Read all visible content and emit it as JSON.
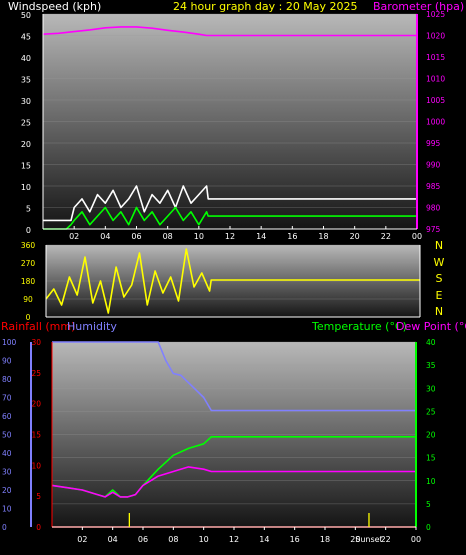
{
  "header": {
    "windspeed_label": "Windspeed (kph)",
    "title": "24 hour graph day : 20 May 2025",
    "barometer_label": "Barometer (hpa)"
  },
  "colors": {
    "white": "#ffffff",
    "yellow": "#ffff00",
    "magenta": "#ff00ff",
    "blue": "#8080ff",
    "green": "#00ff00",
    "red": "#ff0000",
    "bg_top": "#b8b8b8",
    "bg_bottom": "#151515"
  },
  "wind_dir": {
    "compass": [
      "N",
      "W",
      "S",
      "E",
      "N"
    ]
  },
  "lower": {
    "rainfall_label": "Rainfall (mm)",
    "humidity_label": "Humidity",
    "temperature_label": "Temperature (°C)",
    "dewpoint_label": "Dew Point (°C)",
    "sunset_label": "Sunset"
  },
  "chart_data": [
    {
      "type": "line",
      "title": "24 hour graph day : 20 May 2025",
      "x_ticks": [
        "02",
        "04",
        "06",
        "08",
        "10",
        "12",
        "14",
        "16",
        "18",
        "20",
        "22",
        "00"
      ],
      "xlim": [
        0,
        24
      ],
      "y_left": {
        "label": "Windspeed (kph)",
        "ylim": [
          0,
          50
        ],
        "ticks": [
          0,
          5,
          10,
          15,
          20,
          25,
          30,
          35,
          40,
          45,
          50
        ]
      },
      "y_right": {
        "label": "Barometer (hpa)",
        "ylim": [
          975,
          1025
        ],
        "ticks": [
          975,
          980,
          985,
          990,
          995,
          1000,
          1005,
          1010,
          1015,
          1020,
          1025
        ]
      },
      "series": [
        {
          "name": "Barometer (hpa)",
          "axis": "right",
          "color": "#ff00ff",
          "x": [
            0,
            1,
            2,
            3,
            4,
            5,
            6,
            7,
            8,
            9,
            10,
            10.5,
            12,
            16,
            20,
            24
          ],
          "y": [
            1020.3,
            1020.5,
            1020.9,
            1021.3,
            1021.8,
            1022.0,
            1022.0,
            1021.7,
            1021.2,
            1020.8,
            1020.3,
            1020.0,
            1020.0,
            1020.0,
            1020.0,
            1020.0
          ]
        },
        {
          "name": "Gust",
          "axis": "left",
          "color": "#ffffff",
          "x": [
            0,
            1.8,
            2,
            2.5,
            3,
            3.5,
            4,
            4.5,
            5,
            5.5,
            6,
            6.5,
            7,
            7.5,
            8,
            8.5,
            9,
            9.5,
            10,
            10.5,
            10.6,
            24
          ],
          "y": [
            2,
            2,
            5,
            7,
            4,
            8,
            6,
            9,
            5,
            7,
            10,
            4,
            8,
            6,
            9,
            5,
            10,
            6,
            8,
            10,
            7,
            7
          ]
        },
        {
          "name": "Average",
          "axis": "left",
          "color": "#00ff00",
          "x": [
            0,
            1.5,
            1.8,
            2,
            2.5,
            3,
            3.5,
            4,
            4.5,
            5,
            5.5,
            6,
            6.5,
            7,
            7.5,
            8,
            8.5,
            9,
            9.5,
            10,
            10.5,
            10.6,
            24
          ],
          "y": [
            0,
            0,
            1,
            2,
            4,
            1,
            3,
            5,
            2,
            4,
            1,
            5,
            2,
            4,
            1,
            3,
            5,
            2,
            4,
            1,
            4,
            3,
            3
          ]
        }
      ]
    },
    {
      "type": "line",
      "y_ticks": [
        0,
        90,
        180,
        270,
        360
      ],
      "ylim": [
        0,
        360
      ],
      "xlim": [
        0,
        24
      ],
      "series": [
        {
          "name": "Wind direction",
          "color": "#ffff00",
          "x": [
            0,
            0.5,
            1,
            1.5,
            2,
            2.5,
            3,
            3.5,
            4,
            4.5,
            5,
            5.5,
            6,
            6.5,
            7,
            7.5,
            8,
            8.5,
            9,
            9.5,
            10,
            10.5,
            10.6,
            24
          ],
          "y": [
            90,
            140,
            60,
            200,
            110,
            300,
            70,
            180,
            20,
            250,
            100,
            160,
            320,
            60,
            230,
            120,
            200,
            80,
            340,
            150,
            220,
            130,
            185,
            185
          ]
        }
      ]
    },
    {
      "type": "line",
      "x_ticks": [
        "02",
        "04",
        "06",
        "08",
        "10",
        "12",
        "14",
        "16",
        "18",
        "20",
        "22",
        "00"
      ],
      "xlim": [
        0,
        24
      ],
      "y_humidity": {
        "label": "Humidity",
        "ylim": [
          0,
          100
        ],
        "ticks": [
          0,
          10,
          20,
          30,
          40,
          50,
          60,
          70,
          80,
          90,
          100
        ]
      },
      "y_rainfall": {
        "label": "Rainfall (mm)",
        "ylim": [
          0,
          30
        ],
        "ticks": [
          0,
          5,
          10,
          15,
          20,
          25,
          30
        ]
      },
      "y_temperature": {
        "label": "Temperature (°C)",
        "ylim": [
          0,
          40
        ],
        "ticks": [
          0,
          5,
          10,
          15,
          20,
          25,
          30,
          35,
          40
        ]
      },
      "series": [
        {
          "name": "Humidity",
          "axis": "humidity",
          "color": "#8080ff",
          "x": [
            0,
            2,
            4,
            6,
            7,
            7.5,
            8,
            8.5,
            9,
            9.5,
            10,
            10.5,
            11,
            24
          ],
          "y": [
            100,
            100,
            100,
            100,
            100,
            90,
            83,
            82,
            78,
            74,
            70,
            63,
            63,
            63
          ]
        },
        {
          "name": "Temperature (°C)",
          "axis": "temperature",
          "color": "#00ff00",
          "x": [
            0,
            1,
            2,
            3,
            3.5,
            4,
            4.5,
            5,
            5.5,
            6,
            7,
            8,
            9,
            10,
            10.5,
            11,
            24
          ],
          "y": [
            9,
            8.5,
            8,
            7,
            6.5,
            8,
            6.5,
            6.5,
            7,
            9,
            12.5,
            15.5,
            17,
            18,
            19.5,
            19.5,
            19.5
          ]
        },
        {
          "name": "Dew Point (°C)",
          "axis": "temperature",
          "color": "#ff00ff",
          "x": [
            0,
            1,
            2,
            3,
            3.5,
            4,
            4.5,
            5,
            5.5,
            6,
            7,
            8,
            9,
            10,
            10.5,
            11,
            24
          ],
          "y": [
            9,
            8.5,
            8,
            7,
            6.5,
            7.5,
            6.5,
            6.5,
            7,
            9,
            11,
            12,
            13,
            12.5,
            12,
            12,
            12
          ]
        },
        {
          "name": "Rainfall (mm)",
          "axis": "rainfall",
          "color": "#ff0000",
          "x": [
            0,
            24
          ],
          "y": [
            0,
            0
          ]
        }
      ],
      "markers": [
        {
          "label": "Sunset",
          "x": 20.9
        }
      ]
    }
  ]
}
